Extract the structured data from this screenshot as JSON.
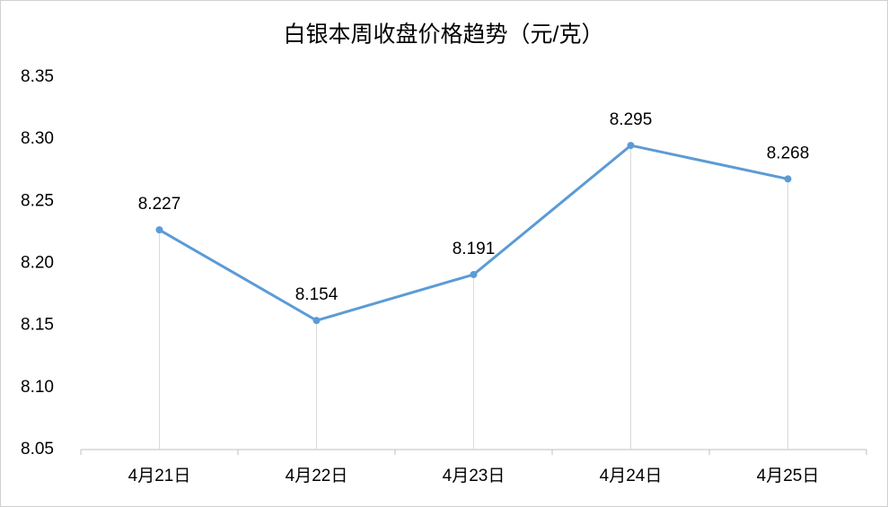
{
  "chart_data": {
    "type": "line",
    "title": "白银本周收盘价格趋势（元/克）",
    "categories": [
      "4月21日",
      "4月22日",
      "4月23日",
      "4月24日",
      "4月25日"
    ],
    "series": [
      {
        "color": "#5b9bd5",
        "values": [
          8.227,
          8.154,
          8.191,
          8.295,
          8.268
        ]
      }
    ],
    "ylim": [
      8.05,
      8.35
    ],
    "yticks": [
      8.05,
      {
        "value": 8.1,
        "label": "8.10"
      },
      8.15,
      {
        "value": 8.2,
        "label": "8.20"
      },
      8.25,
      {
        "value": 8.3,
        "label": "8.30"
      },
      8.35
    ],
    "drop_lines": true
  }
}
